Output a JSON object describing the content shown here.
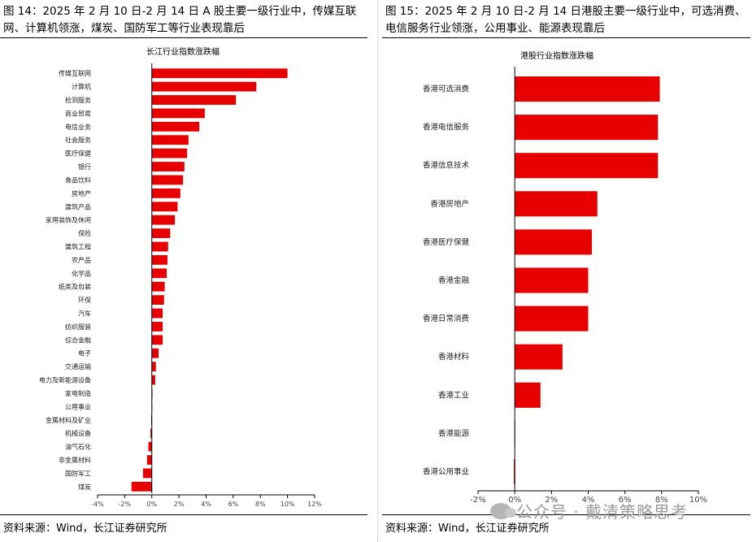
{
  "left": {
    "caption": "图 14：2025 年 2 月 10 日-2 月 14 日 A 股主要一级行业中，传媒互联网、计算机领涨，煤炭、国防军工等行业表现靠后",
    "source": "资料来源：Wind，长江证券研究所"
  },
  "right": {
    "caption": "图 15：2025 年 2 月 10 日-2 月 14 日港股主要一级行业中，可选消费、电信服务行业领涨，公用事业、能源表现靠后",
    "source": "资料来源：Wind，长江证券研究所"
  },
  "watermark": "公众号 · 戴清策略思考",
  "colors": {
    "bar": "#e60000",
    "axis": "#000000"
  },
  "chart_data": [
    {
      "type": "bar",
      "orientation": "horizontal",
      "title": "长江行业指数涨跌幅",
      "categories": [
        "传媒互联网",
        "计算机",
        "检测服务",
        "商业贸易",
        "电信业务",
        "社会服务",
        "医疗保健",
        "银行",
        "食品饮料",
        "房地产",
        "建筑产品",
        "家用装饰及休闲",
        "保险",
        "建筑工程",
        "农产品",
        "化学品",
        "纸类及包装",
        "环保",
        "汽车",
        "纺织服装",
        "综合金融",
        "电子",
        "交通运输",
        "电力及新能源设备",
        "家电制造",
        "公用事业",
        "金属材料及矿业",
        "机械设备",
        "油气石化",
        "非金属材料",
        "国防军工",
        "煤炭"
      ],
      "values": [
        10.0,
        7.7,
        6.2,
        3.9,
        3.5,
        2.7,
        2.6,
        2.4,
        2.3,
        2.1,
        1.9,
        1.7,
        1.35,
        1.2,
        1.15,
        1.1,
        0.95,
        0.9,
        0.8,
        0.8,
        0.8,
        0.5,
        0.3,
        0.25,
        0.05,
        0.0,
        -0.05,
        -0.1,
        -0.25,
        -0.35,
        -0.65,
        -1.5
      ],
      "x_ticks": [
        "-4%",
        "-2%",
        "0%",
        "2%",
        "4%",
        "6%",
        "8%",
        "10%",
        "12%"
      ],
      "xlim": [
        -4,
        12
      ]
    },
    {
      "type": "bar",
      "orientation": "horizontal",
      "title": "港股行业指数涨跌幅",
      "categories": [
        "香港可选消费",
        "香港电信服务",
        "香港信息技术",
        "香港房地产",
        "香港医疗保健",
        "香港金融",
        "香港日常消费",
        "香港材料",
        "香港工业",
        "香港能源",
        "香港公用事业"
      ],
      "values": [
        7.9,
        7.8,
        7.8,
        4.5,
        4.2,
        4.0,
        4.0,
        2.6,
        1.4,
        0.0,
        -0.05
      ],
      "x_ticks": [
        "-2%",
        "0%",
        "2%",
        "4%",
        "6%",
        "8%",
        "10%"
      ],
      "xlim": [
        -2,
        10
      ]
    }
  ]
}
